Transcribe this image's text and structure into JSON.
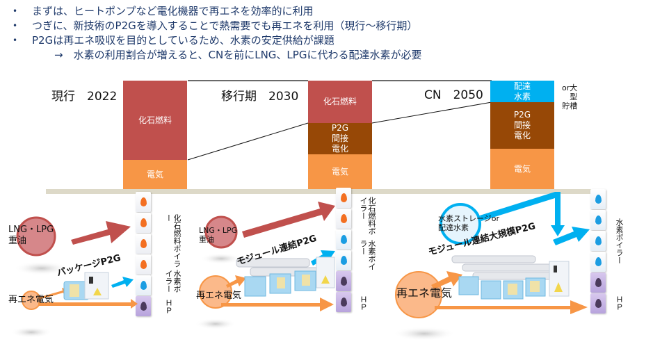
{
  "bullets": [
    "まずは、ヒートポンプなど電化機器で再エネを効率的に利用",
    "つぎに、新技術のP2Gを導入することで熱需要でも再エネを利用（現行～移行期）",
    "P2Gは再エネ吸収を目的としているため、水素の安定供給が課題"
  ],
  "sub_bullet": "→　水素の利用割合が増えると、CNを前にLNG、LPGに代わる配達水素が必要",
  "bullet_marker": "•",
  "colors": {
    "fossil": "#c0504d",
    "electricity": "#f79646",
    "p2g_indirect": "#974806",
    "delivered_h2": "#00b0f0",
    "hp_unit": "#b7a3dc",
    "ground": "#ddd9c8",
    "text_blue": "#1f3a6b"
  },
  "eras": [
    {
      "label": "現行　2022",
      "segments": [
        {
          "name": "fossil",
          "label": "化石燃料",
          "share": 0.73
        },
        {
          "name": "electricity",
          "label": "電気",
          "share": 0.27
        }
      ],
      "sources": [
        {
          "label": "LNG・LPG\n重油",
          "icon": "fossil-fuel-circle"
        },
        {
          "label": "再エネ電気",
          "icon": "renewable-circle"
        }
      ],
      "p2g_label": "パッケージP2G",
      "tower_labels": {
        "fossil": "化石燃料ボイラー",
        "h2": "水素ボイラー",
        "hp": "ＨＰ"
      },
      "tower_units": [
        "fossil",
        "fossil",
        "fossil",
        "fossil",
        "h2",
        "hp"
      ]
    },
    {
      "label": "移行期　2030",
      "segments": [
        {
          "name": "fossil",
          "label": "化石燃料",
          "share": 0.39
        },
        {
          "name": "p2g",
          "label": "P2G\n間接\n電化",
          "share": 0.29
        },
        {
          "name": "electricity",
          "label": "電気",
          "share": 0.32
        }
      ],
      "sources": [
        {
          "label": "LNG・LPG\n重油",
          "icon": "fossil-fuel-circle"
        },
        {
          "label": "再エネ電気",
          "icon": "renewable-circle"
        }
      ],
      "p2g_label": "モジュール連結P2G",
      "tower_labels": {
        "fossil": "化石燃料ボイラー",
        "h2": "水素ボイラー",
        "hp": "ＨＰ"
      },
      "tower_units": [
        "fossil",
        "fossil",
        "h2",
        "h2",
        "hp",
        "hp"
      ]
    },
    {
      "label": "CN　2050",
      "segments": [
        {
          "name": "delivered_h2",
          "label": "配達\n水素",
          "share": 0.2
        },
        {
          "name": "p2g",
          "label": "P2G\n間接\n電化",
          "share": 0.43
        },
        {
          "name": "electricity",
          "label": "電気",
          "share": 0.37
        }
      ],
      "side_note": "or大\n型\n貯槽",
      "sources": [
        {
          "label": "水素ストレージor\n配達水素",
          "icon": "hydrogen-storage-circle"
        },
        {
          "label": "再エネ電気",
          "icon": "renewable-circle"
        }
      ],
      "p2g_label": "モジュール連結大規模P2G",
      "tower_labels": {
        "h2": "水素ボイラー",
        "hp": "ＨＰ"
      },
      "tower_units": [
        "h2",
        "h2",
        "h2",
        "h2",
        "hp",
        "hp"
      ]
    }
  ]
}
